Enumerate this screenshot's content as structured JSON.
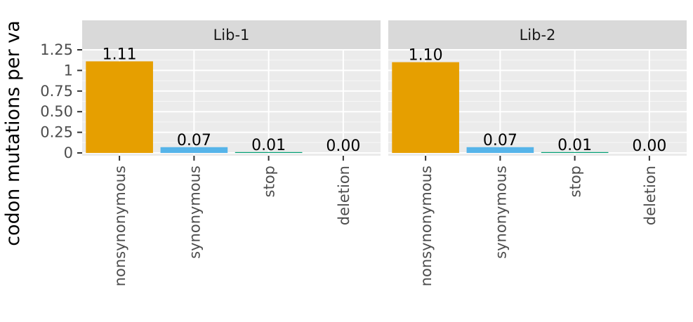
{
  "chart_data": {
    "type": "bar",
    "ylabel": "codon mutations per va",
    "ylim": [
      0,
      1.25
    ],
    "yticks": [
      "0",
      "0.25",
      "0.50",
      "0.75",
      "1",
      "1.25"
    ],
    "ytick_values": [
      0,
      0.25,
      0.5,
      0.75,
      1.0,
      1.25
    ],
    "categories": [
      "nonsynonymous",
      "synonymous",
      "stop",
      "deletion"
    ],
    "category_colors": [
      "#E69F00",
      "#56B4E9",
      "#009E73",
      "#F0E442"
    ],
    "grid": true,
    "panels": [
      {
        "label": "Lib-1",
        "values": [
          1.11,
          0.07,
          0.01,
          0.0
        ],
        "value_labels": [
          "1.11",
          "0.07",
          "0.01",
          "0.00"
        ]
      },
      {
        "label": "Lib-2",
        "values": [
          1.1,
          0.07,
          0.01,
          0.0
        ],
        "value_labels": [
          "1.10",
          "0.07",
          "0.01",
          "0.00"
        ]
      }
    ]
  },
  "colors": {
    "panel_background": "#ebebeb",
    "strip_background": "#d9d9d9",
    "grid_major": "#ffffff"
  }
}
